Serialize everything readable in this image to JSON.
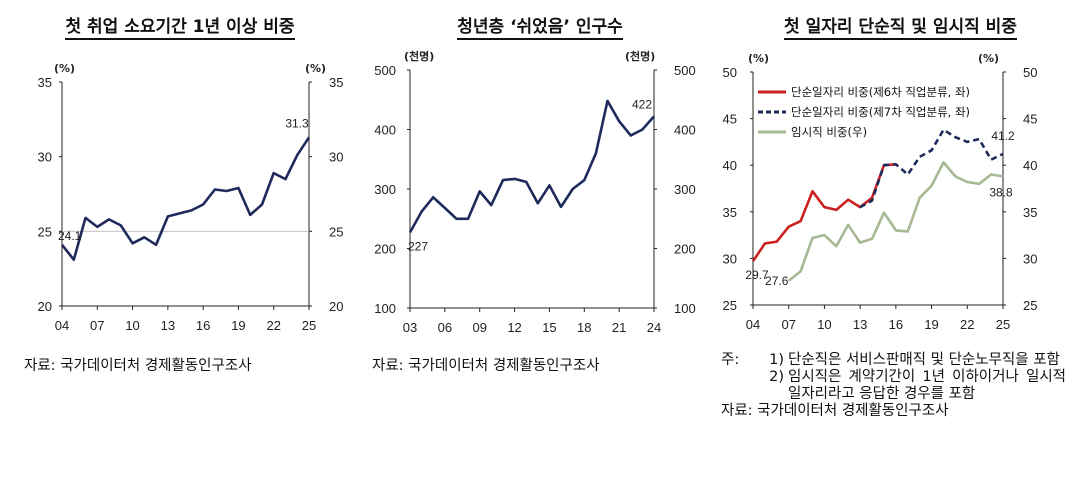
{
  "panels": [
    {
      "title": "첫 취업 소요기간 1년 이상 비중",
      "unit_left": "(%)",
      "unit_right": "(%)",
      "source": "자료: 국가데이터처 경제활동인구조사"
    },
    {
      "title": "청년층 ‘쉬었음’ 인구수",
      "unit_left": "(천명)",
      "unit_right": "(천명)",
      "source": "자료: 국가데이터처 경제활동인구조사"
    },
    {
      "title": "첫 일자리 단순직 및 임시직 비중",
      "unit_left": "(%)",
      "unit_right": "(%)",
      "legend": [
        "단순일자리 비중(제6차 직업분류, 좌)",
        "단순일자리 비중(제7차 직업분류, 좌)",
        "임시직 비중(우)"
      ],
      "notes": {
        "head": "주:",
        "items": [
          {
            "num": "1)",
            "text": "단순직은 서비스판매직 및 단순노무직을 포함"
          },
          {
            "num": "2)",
            "text": "임시직은 계약기간이 1년 이하이거나 일시적 일자리라고 응답한 경우를 포함"
          }
        ]
      },
      "source": "자료: 국가데이터처 경제활동인구조사"
    }
  ],
  "chart_data": [
    {
      "type": "line",
      "title": "첫 취업 소요기간 1년 이상 비중",
      "x": [
        2004,
        2005,
        2006,
        2007,
        2008,
        2009,
        2010,
        2011,
        2012,
        2013,
        2014,
        2015,
        2016,
        2017,
        2018,
        2019,
        2020,
        2021,
        2022,
        2023,
        2024,
        2025
      ],
      "xticks": [
        "04",
        "07",
        "10",
        "13",
        "16",
        "19",
        "22",
        "25"
      ],
      "xlim": [
        2004,
        2025
      ],
      "ylim": [
        20,
        35
      ],
      "yticks": [
        20,
        25,
        30,
        35
      ],
      "y_right_ticks": [
        20,
        25,
        30,
        35
      ],
      "series": [
        {
          "values": [
            24.1,
            23.1,
            25.9,
            25.3,
            25.8,
            25.4,
            24.2,
            24.6,
            24.1,
            26.0,
            26.2,
            26.4,
            26.8,
            27.8,
            27.7,
            27.9,
            26.1,
            26.8,
            28.9,
            28.5,
            30.1,
            31.3
          ],
          "color": "#1f2a5c"
        }
      ],
      "labels": [
        "24.1",
        "31.3"
      ],
      "grid": "horizontal at 25"
    },
    {
      "type": "line",
      "title": "청년층 ‘쉬었음’ 인구수",
      "x": [
        2003,
        2004,
        2005,
        2006,
        2007,
        2008,
        2009,
        2010,
        2011,
        2012,
        2013,
        2014,
        2015,
        2016,
        2017,
        2018,
        2019,
        2020,
        2021,
        2022,
        2023,
        2024
      ],
      "xticks": [
        "03",
        "06",
        "09",
        "12",
        "15",
        "18",
        "21",
        "24"
      ],
      "xlim": [
        2003,
        2024
      ],
      "ylim": [
        100,
        500
      ],
      "yticks": [
        100,
        200,
        300,
        400,
        500
      ],
      "y_right_ticks": [
        100,
        200,
        300,
        400,
        500
      ],
      "series": [
        {
          "values": [
            227,
            262,
            286,
            268,
            250,
            250,
            296,
            273,
            315,
            317,
            312,
            276,
            306,
            270,
            300,
            315,
            360,
            448,
            414,
            390,
            400,
            422
          ],
          "color": "#1f2a5c"
        }
      ],
      "labels": [
        "227",
        "422"
      ],
      "grid": "none"
    },
    {
      "type": "line",
      "title": "첫 일자리 단순직 및 임시직 비중",
      "xticks": [
        "04",
        "07",
        "10",
        "13",
        "16",
        "19",
        "22",
        "25"
      ],
      "xlim": [
        2004,
        2025
      ],
      "ylim": [
        25,
        50
      ],
      "yticks": [
        25,
        30,
        35,
        40,
        45,
        50
      ],
      "y_right_ticks": [
        25,
        30,
        35,
        40,
        45,
        50
      ],
      "series": [
        {
          "name": "단순일자리 비중(제6차 직업분류, 좌)",
          "axis": "left",
          "style": "solid",
          "color": "#cc1f1f",
          "x": [
            2004,
            2005,
            2006,
            2007,
            2008,
            2009,
            2010,
            2011,
            2012,
            2013,
            2014,
            2015,
            2016
          ],
          "values": [
            29.7,
            31.6,
            31.8,
            33.4,
            34.0,
            37.2,
            35.5,
            35.2,
            36.3,
            35.5,
            36.5,
            40.0,
            40.1
          ]
        },
        {
          "name": "단순일자리 비중(제7차 직업분류, 좌)",
          "axis": "left",
          "style": "dashed",
          "color": "#1f2a5c",
          "x": [
            2013,
            2014,
            2015,
            2016,
            2017,
            2018,
            2019,
            2020,
            2021,
            2022,
            2023,
            2024,
            2025
          ],
          "values": [
            35.5,
            36.2,
            40.0,
            40.1,
            39.0,
            40.9,
            41.6,
            43.8,
            43.0,
            42.5,
            42.8,
            40.6,
            41.2
          ]
        },
        {
          "name": "임시직 비중(우)",
          "axis": "right",
          "style": "solid",
          "color": "#a7b894",
          "x": [
            2007,
            2008,
            2009,
            2010,
            2011,
            2012,
            2013,
            2014,
            2015,
            2016,
            2017,
            2018,
            2019,
            2020,
            2021,
            2022,
            2023,
            2024,
            2025
          ],
          "values": [
            27.6,
            28.6,
            32.2,
            32.5,
            31.3,
            33.6,
            31.7,
            32.1,
            34.9,
            33.0,
            32.9,
            36.5,
            37.8,
            40.3,
            38.8,
            38.2,
            38.0,
            39.0,
            38.8
          ]
        }
      ],
      "labels": [
        "29.7",
        "27.6",
        "41.2",
        "38.8"
      ],
      "legend_position": "top-left",
      "grid": "none"
    }
  ]
}
